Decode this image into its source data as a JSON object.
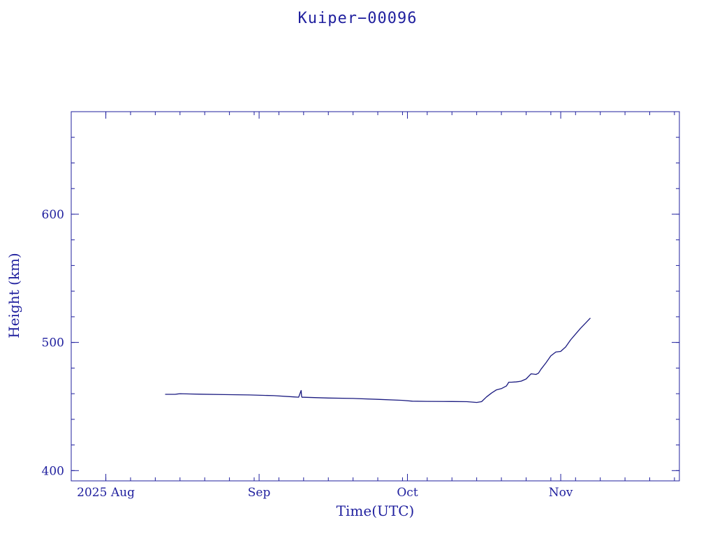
{
  "chart_data": {
    "type": "line",
    "title": "Kuiper−00096",
    "xlabel": "Time(UTC)",
    "ylabel": "Height (km)",
    "x_tick_labels": [
      {
        "date": "2025-08-01",
        "label": "2025 Aug"
      },
      {
        "date": "2025-09-01",
        "label": "Sep"
      },
      {
        "date": "2025-10-01",
        "label": "Oct"
      },
      {
        "date": "2025-11-01",
        "label": "Nov"
      }
    ],
    "xlim": [
      "2025-07-25",
      "2025-11-25"
    ],
    "y_ticks": [
      400,
      500,
      600
    ],
    "ylim": [
      392,
      680
    ],
    "grid": false,
    "colors": {
      "axes": "#1f1f9e",
      "line": "#1a1a80",
      "background": "#ffffff"
    },
    "series": [
      {
        "x": [
          "2025-08-13",
          "2025-08-15",
          "2025-08-16",
          "2025-08-18",
          "2025-08-20",
          "2025-08-25",
          "2025-08-30",
          "2025-09-04",
          "2025-09-08",
          "2025-09-09",
          "2025-09-09T12:00",
          "2025-09-09T14:00",
          "2025-09-09T16:00",
          "2025-09-10",
          "2025-09-15",
          "2025-09-20",
          "2025-09-25",
          "2025-09-30",
          "2025-10-02",
          "2025-10-05",
          "2025-10-10",
          "2025-10-13",
          "2025-10-15",
          "2025-10-16",
          "2025-10-17",
          "2025-10-18",
          "2025-10-19",
          "2025-10-20",
          "2025-10-21",
          "2025-10-21T12:00",
          "2025-10-22",
          "2025-10-23",
          "2025-10-24",
          "2025-10-25",
          "2025-10-26",
          "2025-10-27",
          "2025-10-27T12:00",
          "2025-10-28",
          "2025-10-29",
          "2025-10-30",
          "2025-10-31",
          "2025-11-01",
          "2025-11-02",
          "2025-11-03",
          "2025-11-04",
          "2025-11-05",
          "2025-11-06",
          "2025-11-07"
        ],
        "y": [
          459.5,
          459.5,
          460,
          459.8,
          459.6,
          459.3,
          459.0,
          458.5,
          457.5,
          457.3,
          462.5,
          458.0,
          457.2,
          457.2,
          456.6,
          456.3,
          455.6,
          454.8,
          454.2,
          454.0,
          453.9,
          453.8,
          453.2,
          453.8,
          457.5,
          460.5,
          463.0,
          464.0,
          466.0,
          469.0,
          469.0,
          469.2,
          469.8,
          471.5,
          475.5,
          475.0,
          476.0,
          479.0,
          484.0,
          489.5,
          492.5,
          493.0,
          496.5,
          502.0,
          506.5,
          511.0,
          515.0,
          519.0
        ]
      }
    ]
  }
}
